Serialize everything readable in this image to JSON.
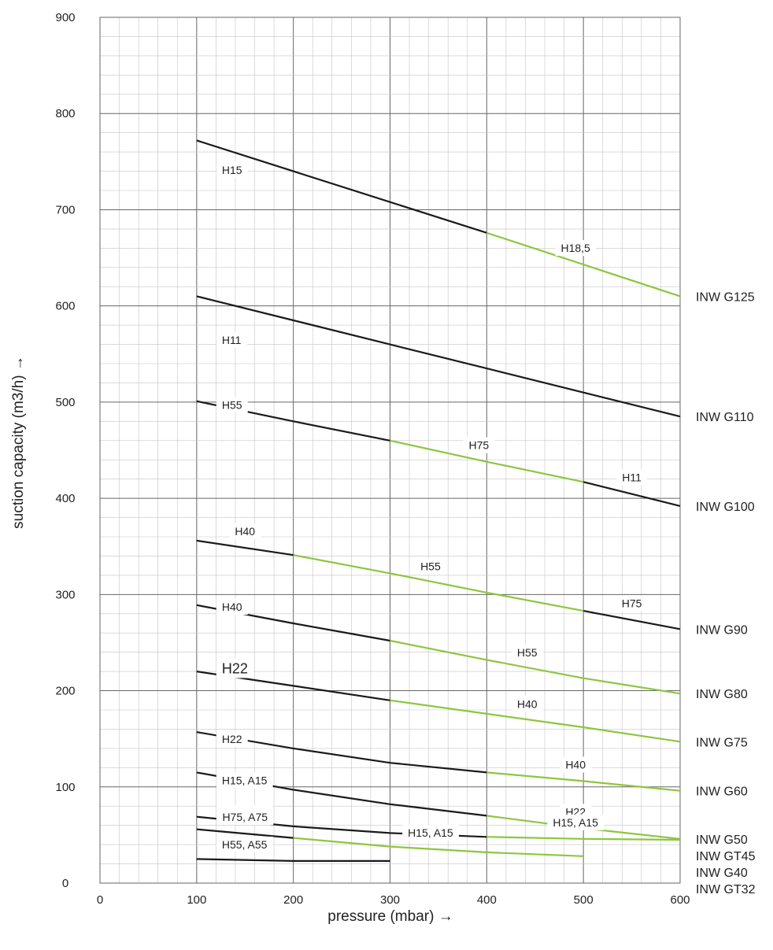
{
  "chart_data": {
    "type": "line",
    "xlabel": "pressure (mbar) →",
    "ylabel": "suction capacity (m3/h) →",
    "xlim": [
      0,
      600
    ],
    "ylim": [
      0,
      900
    ],
    "xticks": [
      0,
      100,
      200,
      300,
      400,
      500,
      600
    ],
    "yticks": [
      0,
      100,
      200,
      300,
      400,
      500,
      600,
      700,
      800,
      900
    ],
    "grid": true,
    "colors": {
      "black": "#1a1a1a",
      "green": "#8dc63f",
      "grid_major": "#666666",
      "grid_minor": "#c4c4c4"
    },
    "series": [
      {
        "name": "INW G125",
        "segments": [
          {
            "color": "black",
            "label": "H15",
            "points": [
              [
                100,
                772
              ],
              [
                200,
                740
              ],
              [
                300,
                708
              ],
              [
                400,
                676
              ]
            ]
          },
          {
            "color": "green",
            "label": "H18,5",
            "points": [
              [
                400,
                676
              ],
              [
                500,
                643
              ],
              [
                600,
                610
              ]
            ]
          }
        ]
      },
      {
        "name": "INW G110",
        "segments": [
          {
            "color": "black",
            "label": "H11",
            "points": [
              [
                100,
                610
              ],
              [
                200,
                585
              ],
              [
                300,
                560
              ],
              [
                400,
                535
              ],
              [
                500,
                510
              ],
              [
                600,
                485
              ]
            ]
          }
        ]
      },
      {
        "name": "INW G100",
        "segments": [
          {
            "color": "black",
            "label": "H55",
            "points": [
              [
                100,
                501
              ],
              [
                200,
                480
              ],
              [
                300,
                460
              ]
            ]
          },
          {
            "color": "green",
            "label": "H75",
            "points": [
              [
                300,
                460
              ],
              [
                400,
                438
              ],
              [
                500,
                417
              ]
            ]
          },
          {
            "color": "black",
            "label": "H11",
            "points": [
              [
                500,
                417
              ],
              [
                600,
                392
              ]
            ]
          }
        ]
      },
      {
        "name": "INW G90",
        "segments": [
          {
            "color": "black",
            "label": "H40",
            "points": [
              [
                100,
                356
              ],
              [
                200,
                341
              ]
            ]
          },
          {
            "color": "green",
            "label": "H55",
            "points": [
              [
                200,
                341
              ],
              [
                300,
                322
              ],
              [
                400,
                302
              ],
              [
                500,
                283
              ]
            ]
          },
          {
            "color": "black",
            "label": "H75",
            "points": [
              [
                500,
                283
              ],
              [
                600,
                264
              ]
            ]
          }
        ]
      },
      {
        "name": "INW G80",
        "segments": [
          {
            "color": "black",
            "label": "H40",
            "points": [
              [
                100,
                289
              ],
              [
                200,
                270
              ],
              [
                300,
                252
              ]
            ]
          },
          {
            "color": "green",
            "label": "H55",
            "points": [
              [
                300,
                252
              ],
              [
                400,
                232
              ],
              [
                500,
                213
              ],
              [
                600,
                197
              ]
            ]
          }
        ]
      },
      {
        "name": "INW G75",
        "segments": [
          {
            "color": "black",
            "label": "H22",
            "points": [
              [
                100,
                220
              ],
              [
                200,
                205
              ],
              [
                300,
                190
              ]
            ]
          },
          {
            "color": "green",
            "label": "H40",
            "points": [
              [
                300,
                190
              ],
              [
                400,
                176
              ],
              [
                500,
                162
              ],
              [
                600,
                147
              ]
            ]
          }
        ]
      },
      {
        "name": "INW G60",
        "segments": [
          {
            "color": "black",
            "label": "H22",
            "points": [
              [
                100,
                157
              ],
              [
                200,
                140
              ],
              [
                300,
                125
              ],
              [
                400,
                115
              ]
            ]
          },
          {
            "color": "green",
            "label": "H40",
            "points": [
              [
                400,
                115
              ],
              [
                500,
                106
              ],
              [
                600,
                96
              ]
            ]
          }
        ]
      },
      {
        "name": "INW G50",
        "segments": [
          {
            "color": "black",
            "label": "H15, A15",
            "points": [
              [
                100,
                115
              ],
              [
                200,
                97
              ],
              [
                300,
                82
              ],
              [
                400,
                70
              ]
            ]
          },
          {
            "color": "green",
            "label": "H22",
            "points": [
              [
                400,
                70
              ],
              [
                500,
                57
              ],
              [
                600,
                46
              ]
            ]
          }
        ]
      },
      {
        "name": "INW GT45",
        "segments": [
          {
            "color": "black",
            "label": "H75, A75",
            "points": [
              [
                100,
                69
              ],
              [
                200,
                59
              ],
              [
                300,
                52
              ],
              [
                400,
                48
              ]
            ]
          },
          {
            "color": "green",
            "label": "H15, A15",
            "points": [
              [
                400,
                48
              ],
              [
                500,
                46
              ],
              [
                600,
                45
              ]
            ]
          }
        ]
      },
      {
        "name": "INW G40",
        "segments": [
          {
            "color": "black",
            "label": "H75, A75",
            "points": [
              [
                100,
                56
              ],
              [
                200,
                47
              ]
            ]
          },
          {
            "color": "green",
            "label": "H15, A15",
            "points": [
              [
                200,
                47
              ],
              [
                300,
                38
              ],
              [
                400,
                32
              ],
              [
                500,
                28
              ]
            ]
          }
        ]
      },
      {
        "name": "INW GT32",
        "segments": [
          {
            "color": "black",
            "label": "H55, A55",
            "points": [
              [
                100,
                25
              ],
              [
                200,
                23
              ],
              [
                300,
                23
              ]
            ]
          }
        ]
      }
    ]
  }
}
